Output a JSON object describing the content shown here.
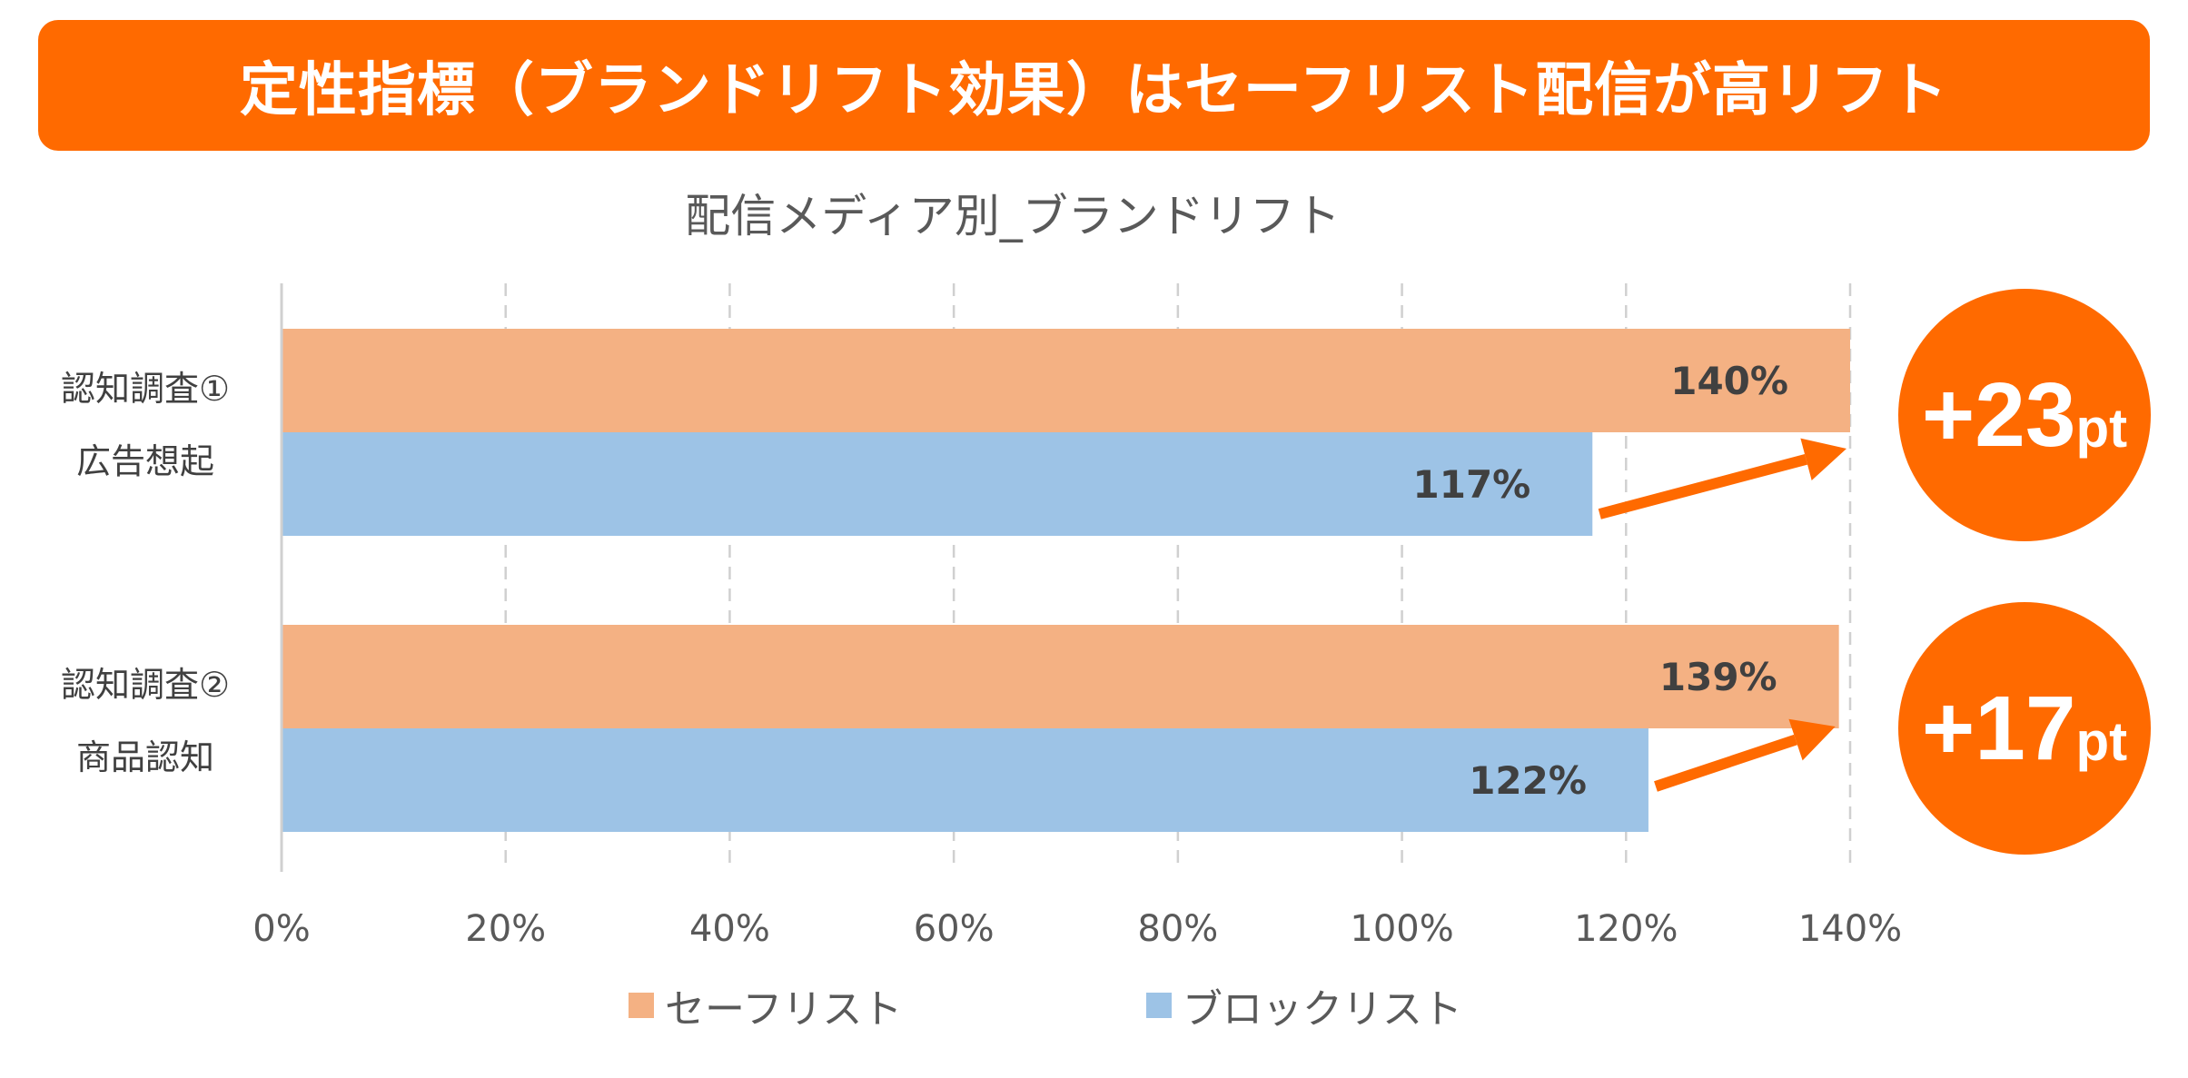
{
  "header": {
    "title": "定性指標（ブランドリフト効果）はセーフリスト配信が高リフト"
  },
  "chart_data": {
    "type": "bar",
    "orientation": "horizontal",
    "title": "配信メディア別_ブランドリフト",
    "categories": [
      {
        "line1": "認知調査①",
        "line2": "広告想起"
      },
      {
        "line1": "認知調査②",
        "line2": "商品認知"
      }
    ],
    "series": [
      {
        "name": "セーフリスト",
        "color": "#f4b183",
        "values": [
          140,
          139
        ],
        "labels": [
          "140%",
          "139%"
        ]
      },
      {
        "name": "ブロックリスト",
        "color": "#9dc3e6",
        "values": [
          117,
          122
        ],
        "labels": [
          "117%",
          "122%"
        ]
      }
    ],
    "xlim": [
      0,
      140
    ],
    "xticks": [
      0,
      20,
      40,
      60,
      80,
      100,
      120,
      140
    ],
    "xtick_labels": [
      "0%",
      "20%",
      "40%",
      "60%",
      "80%",
      "100%",
      "120%",
      "140%"
    ],
    "grid": "vertical-dashed",
    "legend_position": "bottom",
    "annotations": [
      {
        "big": "+23",
        "small": "pt"
      },
      {
        "big": "+17",
        "small": "pt"
      }
    ],
    "accent_color": "#ff6a00"
  }
}
